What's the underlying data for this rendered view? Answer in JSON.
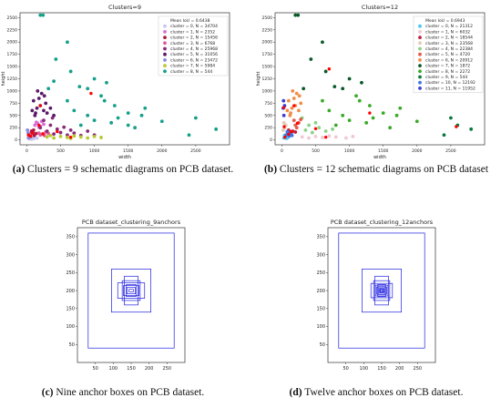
{
  "captions": [
    {
      "letter": "(a)",
      "text": " Clusters = 9 schematic diagrams on PCB dataset."
    },
    {
      "letter": "(b)",
      "text": " Clusters = 12 schematic diagrams on PCB dataset"
    },
    {
      "letter": "(c)",
      "text": " Nine anchor boxes on PCB dataset."
    },
    {
      "letter": "(d)",
      "text": " Twelve anchor boxes on PCB dataset."
    }
  ],
  "chart_data": [
    {
      "type": "scatter",
      "title": "Clusters=9",
      "xlabel": "width",
      "ylabel": "height",
      "xlim": [
        -100,
        3000
      ],
      "ylim": [
        -100,
        2600
      ],
      "xticks": [
        0,
        500,
        1000,
        1500,
        2000,
        2500
      ],
      "yticks": [
        0,
        250,
        500,
        750,
        1000,
        1250,
        1500,
        1750,
        2000,
        2250,
        2500
      ],
      "grid": false,
      "legend_position": "top-right",
      "legend_title": "Mean IoU = 0.6438",
      "series": [
        {
          "name": "cluster = 0, N = 34704",
          "color": "#c8c8f0",
          "points": [
            [
              40,
              20
            ],
            [
              60,
              30
            ],
            [
              80,
              40
            ],
            [
              30,
              60
            ],
            [
              100,
              25
            ],
            [
              120,
              50
            ],
            [
              70,
              15
            ],
            [
              150,
              35
            ]
          ]
        },
        {
          "name": "cluster = 1, N = 2352",
          "color": "#d86fd8",
          "points": [
            [
              120,
              300
            ],
            [
              160,
              340
            ],
            [
              200,
              280
            ],
            [
              140,
              360
            ],
            [
              250,
              320
            ],
            [
              180,
              260
            ],
            [
              220,
              380
            ]
          ]
        },
        {
          "name": "cluster = 2, N = 15456",
          "color": "#b01840",
          "points": [
            [
              60,
              120
            ],
            [
              90,
              150
            ],
            [
              110,
              90
            ],
            [
              70,
              180
            ],
            [
              140,
              130
            ],
            [
              50,
              100
            ],
            [
              100,
              200
            ]
          ]
        },
        {
          "name": "cluster = 3, N = 6768",
          "color": "#e05a9a",
          "points": [
            [
              180,
              140
            ],
            [
              230,
              120
            ],
            [
              280,
              160
            ],
            [
              200,
              100
            ],
            [
              320,
              130
            ],
            [
              260,
              90
            ]
          ]
        },
        {
          "name": "cluster = 4, N = 25968",
          "color": "#8a2a7a",
          "points": [
            [
              200,
              250
            ],
            [
              300,
              180
            ],
            [
              400,
              120
            ],
            [
              500,
              150
            ],
            [
              600,
              100
            ],
            [
              350,
              300
            ],
            [
              450,
              220
            ],
            [
              700,
              140
            ],
            [
              800,
              90
            ],
            [
              1000,
              100
            ],
            [
              550,
              260
            ],
            [
              650,
              200
            ],
            [
              250,
              400
            ],
            [
              380,
              450
            ],
            [
              900,
              180
            ]
          ]
        },
        {
          "name": "cluster = 5, N = 31056",
          "color": "#5a1a6a",
          "points": [
            [
              120,
              500
            ],
            [
              150,
              650
            ],
            [
              200,
              700
            ],
            [
              100,
              800
            ],
            [
              180,
              850
            ],
            [
              250,
              600
            ],
            [
              300,
              550
            ],
            [
              220,
              950
            ],
            [
              160,
              1000
            ],
            [
              280,
              750
            ],
            [
              350,
              650
            ],
            [
              130,
              550
            ],
            [
              400,
              500
            ],
            [
              80,
              600
            ],
            [
              260,
              900
            ]
          ]
        },
        {
          "name": "cluster = 6, N = 23472",
          "color": "#8a8ae0",
          "points": [
            [
              30,
              80
            ],
            [
              20,
              140
            ],
            [
              60,
              60
            ],
            [
              10,
              200
            ],
            [
              45,
              110
            ],
            [
              25,
              40
            ]
          ]
        },
        {
          "name": "cluster = 7, N = 5984",
          "color": "#b8c830",
          "points": [
            [
              300,
              60
            ],
            [
              400,
              40
            ],
            [
              500,
              70
            ],
            [
              600,
              50
            ],
            [
              700,
              80
            ],
            [
              800,
              60
            ],
            [
              900,
              40
            ],
            [
              1000,
              70
            ],
            [
              1100,
              50
            ],
            [
              350,
              90
            ],
            [
              650,
              30
            ]
          ]
        },
        {
          "name": "cluster = 8, N = 544",
          "color": "#14a08a",
          "points": [
            [
              200,
              2550
            ],
            [
              240,
              2550
            ],
            [
              600,
              2000
            ],
            [
              430,
              1650
            ],
            [
              650,
              1400
            ],
            [
              1000,
              1250
            ],
            [
              1180,
              1170
            ],
            [
              320,
              1050
            ],
            [
              780,
              1090
            ],
            [
              900,
              1050
            ],
            [
              1100,
              900
            ],
            [
              1300,
              700
            ],
            [
              1500,
              550
            ],
            [
              1700,
              500
            ],
            [
              1750,
              650
            ],
            [
              2000,
              380
            ],
            [
              2500,
              450
            ],
            [
              2800,
              220
            ],
            [
              2400,
              100
            ],
            [
              1250,
              350
            ],
            [
              1500,
              300
            ],
            [
              700,
              600
            ],
            [
              900,
              500
            ],
            [
              1000,
              400
            ],
            [
              600,
              800
            ],
            [
              400,
              1200
            ],
            [
              1150,
              800
            ],
            [
              1350,
              450
            ],
            [
              800,
              300
            ],
            [
              1600,
              250
            ]
          ]
        }
      ],
      "centroids": [
        [
          55,
          75
        ],
        [
          180,
          300
        ],
        [
          80,
          140
        ],
        [
          240,
          125
        ],
        [
          450,
          170
        ],
        [
          200,
          700
        ],
        [
          25,
          100
        ],
        [
          650,
          55
        ],
        [
          950,
          950
        ]
      ]
    },
    {
      "type": "scatter",
      "title": "Clusters=12",
      "xlabel": "width",
      "ylabel": "height",
      "xlim": [
        -100,
        3000
      ],
      "ylim": [
        -100,
        2600
      ],
      "xticks": [
        0,
        500,
        1000,
        1500,
        2000,
        2500
      ],
      "yticks": [
        0,
        250,
        500,
        750,
        1000,
        1250,
        1500,
        1750,
        2000,
        2250,
        2500
      ],
      "grid": false,
      "legend_position": "top-right",
      "legend_title": "Mean IoU = 0.6943",
      "series": [
        {
          "name": "cluster = 0, N = 21312",
          "color": "#46c8f0",
          "points": [
            [
              30,
              40
            ],
            [
              50,
              60
            ],
            [
              70,
              30
            ],
            [
              40,
              90
            ],
            [
              90,
              50
            ]
          ]
        },
        {
          "name": "cluster = 1, N = 6032",
          "color": "#f0c8d2",
          "points": [
            [
              300,
              60
            ],
            [
              400,
              40
            ],
            [
              500,
              70
            ],
            [
              600,
              50
            ],
            [
              700,
              80
            ],
            [
              800,
              60
            ],
            [
              950,
              40
            ],
            [
              1050,
              70
            ]
          ]
        },
        {
          "name": "cluster = 2, N = 18544",
          "color": "#c01e3c",
          "points": [
            [
              120,
              140
            ],
            [
              160,
              180
            ],
            [
              100,
              200
            ],
            [
              200,
              160
            ]
          ]
        },
        {
          "name": "cluster = 3, N = 23568",
          "color": "#e6c8b4",
          "points": [
            [
              20,
              200
            ],
            [
              40,
              250
            ],
            [
              60,
              300
            ],
            [
              30,
              350
            ]
          ]
        },
        {
          "name": "cluster = 4, N = 22384",
          "color": "#8ad28a",
          "points": [
            [
              350,
              200
            ],
            [
              450,
              150
            ],
            [
              550,
              250
            ],
            [
              650,
              180
            ],
            [
              400,
              300
            ],
            [
              500,
              350
            ],
            [
              300,
              450
            ],
            [
              750,
              220
            ]
          ]
        },
        {
          "name": "cluster = 5, N = 4720",
          "color": "#e65a46",
          "points": [
            [
              200,
              300
            ],
            [
              250,
              350
            ],
            [
              180,
              400
            ],
            [
              280,
              420
            ],
            [
              220,
              250
            ]
          ]
        },
        {
          "name": "cluster = 6, N = 20912",
          "color": "#f08c46",
          "points": [
            [
              120,
              500
            ],
            [
              150,
              650
            ],
            [
              200,
              700
            ],
            [
              100,
              800
            ],
            [
              180,
              850
            ],
            [
              250,
              600
            ],
            [
              220,
              950
            ],
            [
              160,
              1000
            ],
            [
              280,
              750
            ],
            [
              130,
              550
            ],
            [
              80,
              600
            ],
            [
              260,
              900
            ]
          ]
        },
        {
          "name": "cluster = 7, N = 1872",
          "color": "#0a5a28",
          "points": [
            [
              200,
              2550
            ],
            [
              240,
              2550
            ],
            [
              600,
              2000
            ],
            [
              430,
              1650
            ],
            [
              650,
              1400
            ],
            [
              1000,
              1250
            ],
            [
              320,
              1050
            ],
            [
              1180,
              1170
            ],
            [
              780,
              1090
            ],
            [
              900,
              1050
            ]
          ]
        },
        {
          "name": "cluster = 8, N = 2272",
          "color": "#3aaa28",
          "points": [
            [
              700,
              600
            ],
            [
              900,
              500
            ],
            [
              1000,
              400
            ],
            [
              600,
              800
            ],
            [
              1100,
              900
            ],
            [
              1300,
              700
            ],
            [
              1500,
              550
            ],
            [
              1700,
              500
            ],
            [
              1750,
              650
            ],
            [
              2000,
              380
            ],
            [
              1250,
              350
            ],
            [
              1350,
              450
            ],
            [
              800,
              300
            ],
            [
              1600,
              250
            ],
            [
              1150,
              800
            ]
          ]
        },
        {
          "name": "cluster = 9, N = 544",
          "color": "#0a7a3c",
          "points": [
            [
              2500,
              450
            ],
            [
              2800,
              220
            ],
            [
              2400,
              100
            ],
            [
              2600,
              300
            ]
          ]
        },
        {
          "name": "cluster = 10, N = 12192",
          "color": "#3c78e6",
          "points": [
            [
              60,
              100
            ],
            [
              90,
              140
            ],
            [
              110,
              80
            ],
            [
              140,
              120
            ],
            [
              80,
              170
            ],
            [
              150,
              90
            ],
            [
              100,
              110
            ]
          ]
        },
        {
          "name": "cluster = 11, N = 11952",
          "color": "#3c3cd2",
          "points": [
            [
              30,
              500
            ],
            [
              20,
              650
            ],
            [
              40,
              700
            ],
            [
              25,
              800
            ]
          ]
        }
      ],
      "centroids": [
        [
          45,
          55
        ],
        [
          650,
          55
        ],
        [
          140,
          170
        ],
        [
          35,
          270
        ],
        [
          500,
          230
        ],
        [
          230,
          340
        ],
        [
          180,
          700
        ],
        [
          700,
          1450
        ],
        [
          1300,
          550
        ],
        [
          2580,
          270
        ],
        [
          100,
          115
        ],
        [
          30,
          660
        ]
      ]
    },
    {
      "type": "anchor_boxes",
      "title": "PCB dataset_clustering_9anchors",
      "xlim": [
        0,
        300
      ],
      "ylim": [
        0,
        375
      ],
      "xticks": [
        50,
        100,
        150,
        200,
        250
      ],
      "yticks": [
        50,
        100,
        150,
        200,
        250,
        300,
        350
      ],
      "boxes": [
        [
          12,
          7
        ],
        [
          23,
          18
        ],
        [
          28,
          33
        ],
        [
          43,
          28
        ],
        [
          50,
          55
        ],
        [
          75,
          43
        ],
        [
          38,
          80
        ],
        [
          110,
          120
        ],
        [
          240,
          320
        ]
      ]
    },
    {
      "type": "anchor_boxes",
      "title": "PCB dataset_clustering_12anchors",
      "xlim": [
        0,
        300
      ],
      "ylim": [
        0,
        375
      ],
      "xticks": [
        50,
        100,
        150,
        200,
        250
      ],
      "yticks": [
        50,
        100,
        150,
        200,
        250,
        300,
        350
      ],
      "boxes": [
        [
          6,
          5
        ],
        [
          10,
          9
        ],
        [
          15,
          12
        ],
        [
          20,
          22
        ],
        [
          28,
          20
        ],
        [
          22,
          34
        ],
        [
          35,
          30
        ],
        [
          45,
          55
        ],
        [
          60,
          40
        ],
        [
          38,
          80
        ],
        [
          110,
          120
        ],
        [
          240,
          320
        ]
      ]
    }
  ]
}
